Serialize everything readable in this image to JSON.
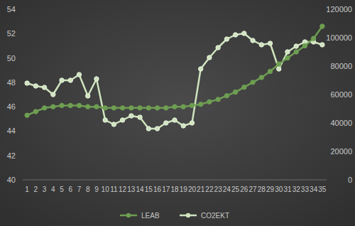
{
  "chart_data": {
    "type": "line",
    "categories": [
      "1",
      "2",
      "3",
      "4",
      "5",
      "6",
      "7",
      "8",
      "9",
      "10",
      "11",
      "12",
      "13",
      "14",
      "15",
      "16",
      "17",
      "18",
      "19",
      "20",
      "21",
      "22",
      "23",
      "24",
      "25",
      "26",
      "27",
      "28",
      "29",
      "30",
      "31",
      "32",
      "33",
      "34",
      "35"
    ],
    "series": [
      {
        "name": "LEAB",
        "color": "#6e9e52",
        "marker": "circle",
        "values": [
          45.3,
          45.6,
          45.9,
          46.0,
          46.1,
          46.1,
          46.1,
          46.0,
          46.0,
          45.9,
          45.9,
          45.9,
          45.9,
          45.9,
          45.9,
          45.9,
          45.9,
          46.0,
          46.0,
          46.1,
          46.2,
          46.4,
          46.6,
          46.9,
          47.2,
          47.6,
          48.0,
          48.4,
          48.9,
          49.5,
          50.0,
          50.5,
          51.0,
          51.6,
          52.6
        ]
      },
      {
        "name": "CO2EKT",
        "color": "#cfe3be",
        "marker": "circle",
        "axis": "y2",
        "values": [
          68000,
          66000,
          65000,
          60000,
          70000,
          70000,
          74000,
          59000,
          71000,
          42000,
          39000,
          42000,
          45000,
          44000,
          36000,
          36000,
          40000,
          42000,
          38000,
          40000,
          78000,
          86000,
          93000,
          99000,
          102000,
          103000,
          98000,
          95000,
          96000,
          78000,
          90000,
          94000,
          97000,
          97000,
          95000
        ]
      }
    ],
    "ylim": [
      40,
      54
    ],
    "yticks": [
      40,
      42,
      44,
      46,
      48,
      50,
      52,
      54
    ],
    "y2lim": [
      0,
      120000
    ],
    "y2ticks": [
      0,
      20000,
      40000,
      60000,
      80000,
      100000,
      120000
    ],
    "grid": false,
    "legend": "bottom"
  }
}
